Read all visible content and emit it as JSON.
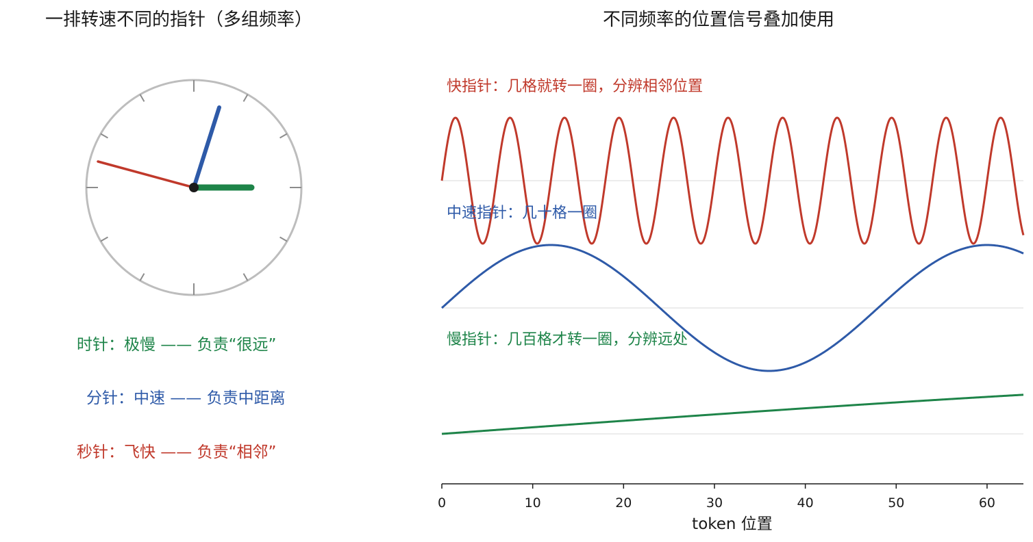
{
  "left_panel": {
    "title": "一排转速不同的指针（多组频率）",
    "legend": [
      {
        "text": "时针：极慢 —— 负责“很远”",
        "color": "#1e8449"
      },
      {
        "text": "分针：中速 —— 负责中距离",
        "color": "#2e5aa8"
      },
      {
        "text": "秒针：飞快 —— 负责“相邻”",
        "color": "#c0392b"
      }
    ]
  },
  "right_panel": {
    "title": "不同频率的位置信号叠加使用",
    "labels": {
      "fast": "快指针：几格就转一圈，分辨相邻位置",
      "medium": "中速指针：几十格一圈",
      "slow": "慢指针：几百格才转一圈，分辨远处"
    }
  },
  "colors": {
    "fast": "#c0392b",
    "medium": "#2e5aa8",
    "slow": "#1e8449",
    "clock_face": "#bdbdbd",
    "baseline": "#e6e6e6"
  },
  "chart_data": {
    "type": "line",
    "xlabel": "token 位置",
    "xticks": [
      0,
      10,
      20,
      30,
      40,
      50,
      60
    ],
    "xlim": [
      0,
      64
    ],
    "series": [
      {
        "key": "fast",
        "period": 6,
        "amplitude": 1,
        "phase": 0
      },
      {
        "key": "medium",
        "period": 48,
        "amplitude": 1,
        "phase": 0
      },
      {
        "key": "slow",
        "period": 600,
        "amplitude": 1,
        "phase": 0
      }
    ]
  }
}
